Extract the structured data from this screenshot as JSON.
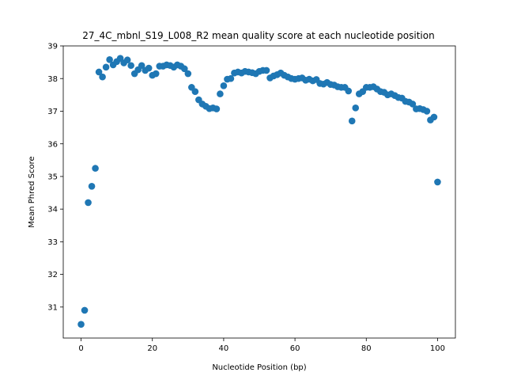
{
  "chart_data": {
    "type": "scatter",
    "title": "27_4C_mbnl_S19_L008_R2 mean quality score at each nucleotide position",
    "xlabel": "Nucleotide Position (bp)",
    "ylabel": "Mean Phred Score",
    "xlim": [
      -5,
      105
    ],
    "ylim": [
      30.05,
      39.0
    ],
    "xticks": [
      0,
      20,
      40,
      60,
      80,
      100
    ],
    "yticks": [
      31,
      32,
      33,
      34,
      35,
      36,
      37,
      38,
      39
    ],
    "grid": false,
    "color": "#1f77b4",
    "x": [
      0,
      1,
      2,
      3,
      4,
      5,
      6,
      7,
      8,
      9,
      10,
      11,
      12,
      13,
      14,
      15,
      16,
      17,
      18,
      19,
      20,
      21,
      22,
      23,
      24,
      25,
      26,
      27,
      28,
      29,
      30,
      31,
      32,
      33,
      34,
      35,
      36,
      37,
      38,
      39,
      40,
      41,
      42,
      43,
      44,
      45,
      46,
      47,
      48,
      49,
      50,
      51,
      52,
      53,
      54,
      55,
      56,
      57,
      58,
      59,
      60,
      61,
      62,
      63,
      64,
      65,
      66,
      67,
      68,
      69,
      70,
      71,
      72,
      73,
      74,
      75,
      76,
      77,
      78,
      79,
      80,
      81,
      82,
      83,
      84,
      85,
      86,
      87,
      88,
      89,
      90,
      91,
      92,
      93,
      94,
      95,
      96,
      97,
      98,
      99,
      100
    ],
    "y": [
      30.47,
      30.9,
      34.2,
      34.7,
      35.25,
      38.2,
      38.05,
      38.35,
      38.58,
      38.42,
      38.52,
      38.62,
      38.48,
      38.57,
      38.4,
      38.15,
      38.27,
      38.4,
      38.25,
      38.32,
      38.1,
      38.15,
      38.38,
      38.38,
      38.42,
      38.4,
      38.35,
      38.42,
      38.38,
      38.3,
      38.15,
      37.73,
      37.6,
      37.35,
      37.22,
      37.15,
      37.08,
      37.1,
      37.07,
      37.53,
      37.78,
      37.98,
      38.0,
      38.17,
      38.2,
      38.17,
      38.22,
      38.2,
      38.18,
      38.15,
      38.22,
      38.25,
      38.25,
      38.02,
      38.08,
      38.12,
      38.17,
      38.1,
      38.05,
      38.0,
      37.98,
      38.0,
      38.02,
      37.95,
      37.98,
      37.93,
      37.97,
      37.85,
      37.83,
      37.88,
      37.82,
      37.8,
      37.75,
      37.73,
      37.73,
      37.62,
      36.7,
      37.1,
      37.53,
      37.6,
      37.73,
      37.73,
      37.75,
      37.68,
      37.6,
      37.58,
      37.5,
      37.53,
      37.48,
      37.42,
      37.4,
      37.3,
      37.28,
      37.22,
      37.07,
      37.08,
      37.05,
      37.0,
      36.73,
      36.82,
      34.83
    ]
  }
}
